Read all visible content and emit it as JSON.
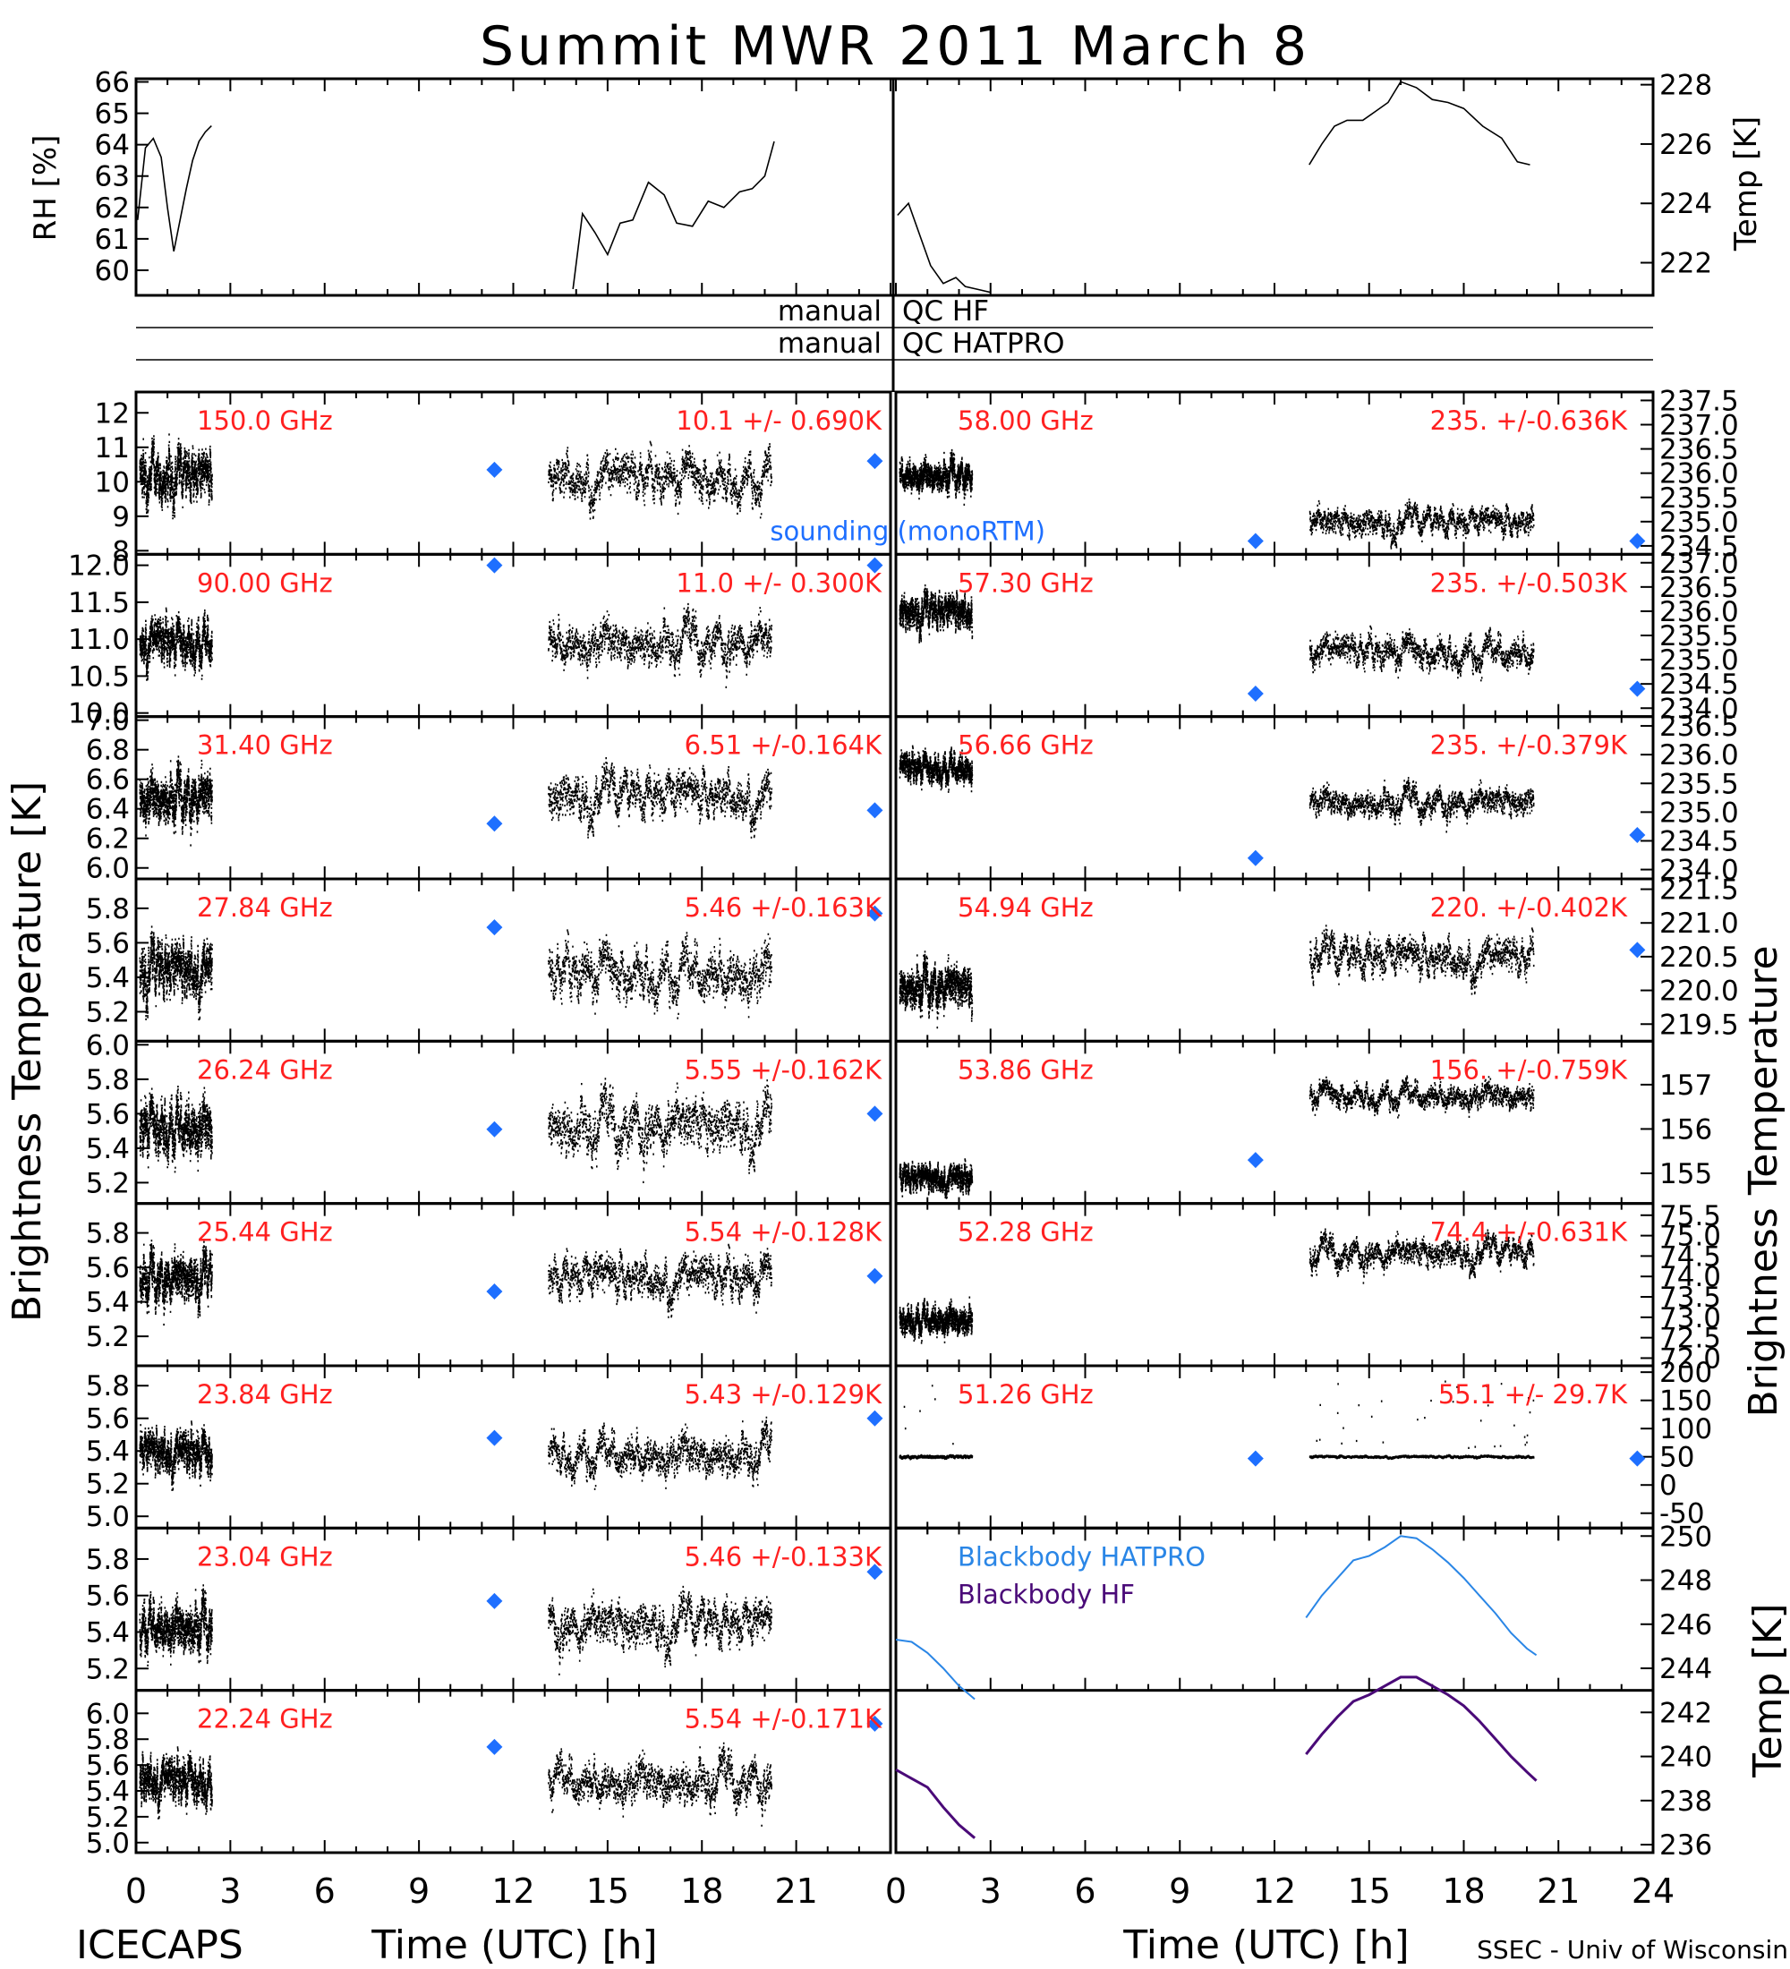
{
  "title": "Summit MWR 2011 March  8",
  "footer_left": "ICECAPS",
  "footer_right": "SSEC - Univ of Wisconsin",
  "left_axis_label": "Brightness Temperature [K]",
  "right_axis_label": "Brightness Temperature",
  "xlabel": "Time (UTC) [h]",
  "colors": {
    "label_red": "#ff2020",
    "sounding_blue": "#1e6fff",
    "bb_hatpro": "#2a86e6",
    "bb_hf": "#4a0a78"
  },
  "qc": [
    {
      "left": "manual",
      "right": "QC HF"
    },
    {
      "left": "manual",
      "right": "QC HATPRO"
    }
  ],
  "chart_data": [
    {
      "id": "met",
      "type": "line",
      "left": {
        "ylabel": "RH [%]",
        "ylim": [
          59.2,
          66.1
        ],
        "yticks": [
          "60",
          "61",
          "62",
          "63",
          "64",
          "65",
          "66"
        ],
        "x": [
          0.05,
          0.3,
          0.55,
          0.8,
          1.0,
          1.2,
          1.4,
          1.6,
          1.8,
          2.0,
          2.2,
          2.4,
          13.9,
          14.2,
          14.6,
          15.0,
          15.4,
          15.8,
          16.3,
          16.8,
          17.2,
          17.7,
          18.2,
          18.7,
          19.2,
          19.6,
          20.0,
          20.3
        ],
        "y": [
          61.6,
          63.9,
          64.2,
          63.6,
          62.0,
          60.6,
          61.6,
          62.6,
          63.5,
          64.1,
          64.4,
          64.6,
          59.4,
          61.8,
          61.2,
          60.5,
          61.5,
          61.6,
          62.8,
          62.4,
          61.5,
          61.4,
          62.2,
          62.0,
          62.5,
          62.6,
          63.0,
          64.1
        ]
      },
      "right": {
        "ylabel": "Temp [K]",
        "ylim": [
          220.9,
          228.2
        ],
        "yticks": [
          "222",
          "224",
          "226",
          "228"
        ],
        "x": [
          0.05,
          0.4,
          0.8,
          1.1,
          1.5,
          1.9,
          2.2,
          2.6,
          3.0,
          13.1,
          13.5,
          13.9,
          14.3,
          14.8,
          15.2,
          15.6,
          16.0,
          16.5,
          17.0,
          17.5,
          18.0,
          18.6,
          19.2,
          19.7,
          20.1
        ],
        "y": [
          223.6,
          224.0,
          222.8,
          221.9,
          221.3,
          221.5,
          221.2,
          221.1,
          221.0,
          225.3,
          226.0,
          226.6,
          226.8,
          226.8,
          227.1,
          227.4,
          228.1,
          227.9,
          227.5,
          227.4,
          227.2,
          226.6,
          226.2,
          225.4,
          225.3
        ]
      }
    },
    {
      "id": "p1",
      "type": "scatter",
      "left": {
        "freq": "150.0 GHz",
        "stat": "10.1 +/- 0.690K",
        "ylim": [
          8.0,
          12.5
        ],
        "yticks": [
          "8",
          "9",
          "10",
          "11",
          "12"
        ],
        "mean": 10.2,
        "amp": 0.69,
        "sounding": [
          [
            11.4,
            10.35
          ],
          [
            23.5,
            10.6
          ]
        ],
        "sounding_label": "sounding (monoRTM)"
      },
      "right": {
        "freq": "58.00 GHz",
        "stat": "235. +/-0.636K",
        "ylim": [
          234.4,
          237.6
        ],
        "yticks": [
          "234.5",
          "235.0",
          "235.5",
          "236.0",
          "236.5",
          "237.0",
          "237.5"
        ],
        "mean": 235.0,
        "amp": 0.3,
        "early": 236.0,
        "sounding": [
          [
            11.4,
            234.6
          ],
          [
            23.5,
            234.6
          ]
        ]
      }
    },
    {
      "id": "p2",
      "type": "scatter",
      "left": {
        "freq": "90.00 GHz",
        "stat": "11.0 +/- 0.300K",
        "ylim": [
          10.0,
          12.1
        ],
        "yticks": [
          "10.0",
          "10.5",
          "11.0",
          "11.5",
          "12.0"
        ],
        "mean": 11.0,
        "amp": 0.3,
        "sounding": [
          [
            11.4,
            12.0
          ],
          [
            23.5,
            12.0
          ]
        ]
      },
      "right": {
        "freq": "57.30 GHz",
        "stat": "235. +/-0.503K",
        "ylim": [
          233.9,
          237.1
        ],
        "yticks": [
          "234.0",
          "234.5",
          "235.0",
          "235.5",
          "236.0",
          "236.5",
          "237.0"
        ],
        "mean": 235.2,
        "amp": 0.35,
        "early": 236.0,
        "sounding": [
          [
            11.4,
            234.3
          ],
          [
            23.5,
            234.4
          ]
        ]
      }
    },
    {
      "id": "p3",
      "type": "scatter",
      "left": {
        "freq": "31.40 GHz",
        "stat": "6.51 +/-0.164K",
        "ylim": [
          5.95,
          7.0
        ],
        "yticks": [
          "6.0",
          "6.2",
          "6.4",
          "6.6",
          "6.8",
          "7.0"
        ],
        "mean": 6.5,
        "amp": 0.16,
        "sounding": [
          [
            11.4,
            6.3
          ],
          [
            23.5,
            6.39
          ]
        ]
      },
      "right": {
        "freq": "56.66 GHz",
        "stat": "235. +/-0.379K",
        "ylim": [
          233.9,
          236.6
        ],
        "yticks": [
          "234.0",
          "234.5",
          "235.0",
          "235.5",
          "236.0",
          "236.5"
        ],
        "mean": 235.2,
        "amp": 0.25,
        "early": 235.8,
        "sounding": [
          [
            11.4,
            234.2
          ],
          [
            23.5,
            234.6
          ]
        ]
      }
    },
    {
      "id": "p4",
      "type": "scatter",
      "left": {
        "freq": "27.84 GHz",
        "stat": "5.46 +/-0.163K",
        "ylim": [
          5.05,
          5.95
        ],
        "yticks": [
          "5.2",
          "5.4",
          "5.6",
          "5.8"
        ],
        "mean": 5.45,
        "amp": 0.16,
        "sounding": [
          [
            11.4,
            5.69
          ],
          [
            23.5,
            5.77
          ]
        ]
      },
      "right": {
        "freq": "54.94 GHz",
        "stat": "220. +/-0.402K",
        "ylim": [
          219.3,
          221.6
        ],
        "yticks": [
          "219.5",
          "220.0",
          "220.5",
          "221.0",
          "221.5"
        ],
        "mean": 220.5,
        "amp": 0.3,
        "early": 220.1,
        "sounding": [
          [
            23.5,
            220.6
          ]
        ]
      }
    },
    {
      "id": "p5",
      "type": "scatter",
      "left": {
        "freq": "26.24 GHz",
        "stat": "5.55 +/-0.162K",
        "ylim": [
          5.1,
          6.0
        ],
        "yticks": [
          "5.2",
          "5.4",
          "5.6",
          "5.8",
          "6.0"
        ],
        "mean": 5.55,
        "amp": 0.16,
        "sounding": [
          [
            11.4,
            5.51
          ],
          [
            23.5,
            5.6
          ]
        ]
      },
      "right": {
        "freq": "53.86 GHz",
        "stat": "156. +/-0.759K",
        "ylim": [
          154.4,
          157.9
        ],
        "yticks": [
          "155",
          "156",
          "157"
        ],
        "mean": 156.8,
        "amp": 0.3,
        "early": 154.9,
        "sounding": [
          [
            11.4,
            155.3
          ]
        ]
      }
    },
    {
      "id": "p6",
      "type": "scatter",
      "left": {
        "freq": "25.44 GHz",
        "stat": "5.54 +/-0.128K",
        "ylim": [
          5.05,
          5.95
        ],
        "yticks": [
          "5.2",
          "5.4",
          "5.6",
          "5.8"
        ],
        "mean": 5.55,
        "amp": 0.13,
        "sounding": [
          [
            11.4,
            5.46
          ],
          [
            23.5,
            5.55
          ]
        ]
      },
      "right": {
        "freq": "52.28 GHz",
        "stat": "74.4 +/-0.631K",
        "ylim": [
          71.9,
          75.7
        ],
        "yticks": [
          "72.0",
          "72.5",
          "73.0",
          "73.5",
          "74.0",
          "74.5",
          "75.0",
          "75.5"
        ],
        "mean": 74.6,
        "amp": 0.35,
        "early": 73.0,
        "sounding": []
      }
    },
    {
      "id": "p7",
      "type": "scatter",
      "left": {
        "freq": "23.84 GHz",
        "stat": "5.43 +/-0.129K",
        "ylim": [
          4.95,
          5.9
        ],
        "yticks": [
          "5.0",
          "5.2",
          "5.4",
          "5.6",
          "5.8"
        ],
        "mean": 5.4,
        "amp": 0.13,
        "sounding": [
          [
            11.4,
            5.48
          ],
          [
            23.5,
            5.6
          ]
        ]
      },
      "right": {
        "freq": "51.26 GHz",
        "stat": "55.1 +/- 29.7K",
        "ylim": [
          -70,
          205
        ],
        "yticks": [
          "-50",
          "0",
          "50",
          "100",
          "150",
          "200"
        ],
        "mean": 50,
        "amp": 2,
        "early": 50,
        "outliers": true,
        "sounding": [
          [
            11.4,
            47
          ],
          [
            23.5,
            47
          ]
        ]
      }
    },
    {
      "id": "p8",
      "type": "scatter",
      "left": {
        "freq": "23.04 GHz",
        "stat": "5.46 +/-0.133K",
        "ylim": [
          5.1,
          5.95
        ],
        "yticks": [
          "5.2",
          "5.4",
          "5.6",
          "5.8"
        ],
        "mean": 5.45,
        "amp": 0.13,
        "sounding": [
          [
            11.4,
            5.57
          ],
          [
            23.5,
            5.73
          ]
        ]
      },
      "right": {
        "type": "line",
        "ylabel": "Temp [K]",
        "ylim": [
          235.8,
          250.2
        ],
        "yticks": [
          "236",
          "238",
          "240",
          "242",
          "244",
          "246",
          "248",
          "250"
        ],
        "legend": [
          "Blackbody HATPRO",
          "Blackbody HF"
        ],
        "series": [
          {
            "name": "Blackbody HATPRO",
            "x": [
              0,
              0.5,
              1.0,
              1.5,
              2.0,
              2.5,
              13.0,
              13.5,
              14.0,
              14.5,
              15.0,
              15.5,
              16.0,
              16.5,
              17.0,
              17.5,
              18.0,
              18.5,
              19.0,
              19.5,
              20.0,
              20.3
            ],
            "y": [
              245.3,
              245.2,
              244.7,
              244.0,
              243.2,
              242.6,
              246.3,
              247.3,
              248.1,
              248.9,
              249.1,
              249.5,
              250.0,
              249.9,
              249.4,
              248.8,
              248.1,
              247.3,
              246.5,
              245.6,
              244.9,
              244.6
            ]
          },
          {
            "name": "Blackbody HF",
            "x": [
              0,
              0.5,
              1.0,
              1.5,
              2.0,
              2.5,
              13.0,
              13.5,
              14.0,
              14.5,
              15.0,
              15.5,
              16.0,
              16.5,
              17.0,
              17.5,
              18.0,
              18.5,
              19.0,
              19.5,
              20.0,
              20.3
            ],
            "y": [
              239.4,
              239.0,
              238.6,
              237.7,
              236.9,
              236.3,
              240.1,
              241.0,
              241.8,
              242.5,
              242.8,
              243.2,
              243.6,
              243.6,
              243.2,
              242.8,
              242.3,
              241.6,
              240.8,
              240.0,
              239.3,
              238.9
            ]
          }
        ]
      }
    },
    {
      "id": "p9",
      "type": "scatter",
      "left": {
        "freq": "22.24 GHz",
        "stat": "5.54 +/-0.171K",
        "ylim": [
          4.95,
          6.15
        ],
        "yticks": [
          "5.0",
          "5.2",
          "5.4",
          "5.6",
          "5.8",
          "6.0"
        ],
        "mean": 5.5,
        "amp": 0.17,
        "sounding": [
          [
            11.4,
            5.74
          ],
          [
            23.5,
            5.92
          ]
        ]
      }
    }
  ],
  "xaxis": {
    "xlim": [
      0,
      24
    ],
    "left_ticks": [
      "0",
      "3",
      "6",
      "9",
      "12",
      "15",
      "18",
      "21"
    ],
    "right_ticks": [
      "0",
      "3",
      "6",
      "9",
      "12",
      "15",
      "18",
      "21",
      "24"
    ]
  }
}
